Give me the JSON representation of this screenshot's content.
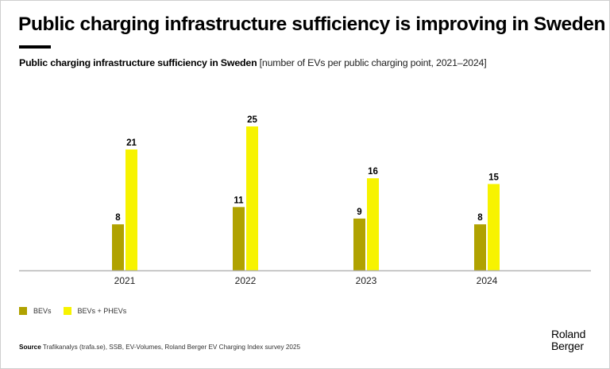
{
  "title": "Public charging infrastructure sufficiency is improving in Sweden",
  "subtitle": {
    "bold": "Public charging infrastructure sufficiency in Sweden",
    "light": " [number of EVs per public charging point, 2021–2024]"
  },
  "colors": {
    "bevs": "#b0a200",
    "bevs_phevs": "#f7f300",
    "axis": "#b5b5b5"
  },
  "chart_data": {
    "type": "bar",
    "title": "Public charging infrastructure sufficiency in Sweden",
    "subtitle": "number of EVs per public charging point, 2021–2024",
    "xlabel": "",
    "ylabel": "",
    "categories": [
      "2021",
      "2022",
      "2023",
      "2024"
    ],
    "series": [
      {
        "name": "BEVs",
        "values": [
          8,
          11,
          9,
          8
        ]
      },
      {
        "name": "BEVs + PHEVs",
        "values": [
          21,
          25,
          16,
          15
        ]
      }
    ],
    "ylim": [
      0,
      25
    ],
    "grid": false,
    "legend": "bottom-left"
  },
  "legend": [
    {
      "label": "BEVs"
    },
    {
      "label": "BEVs + PHEVs"
    }
  ],
  "source": {
    "label": "Source",
    "text": " Trafikanalys (trafa.se), SSB, EV-Volumes, Roland Berger EV Charging Index survey 2025"
  },
  "logo": {
    "line1": "Roland",
    "line2": "Berger"
  }
}
